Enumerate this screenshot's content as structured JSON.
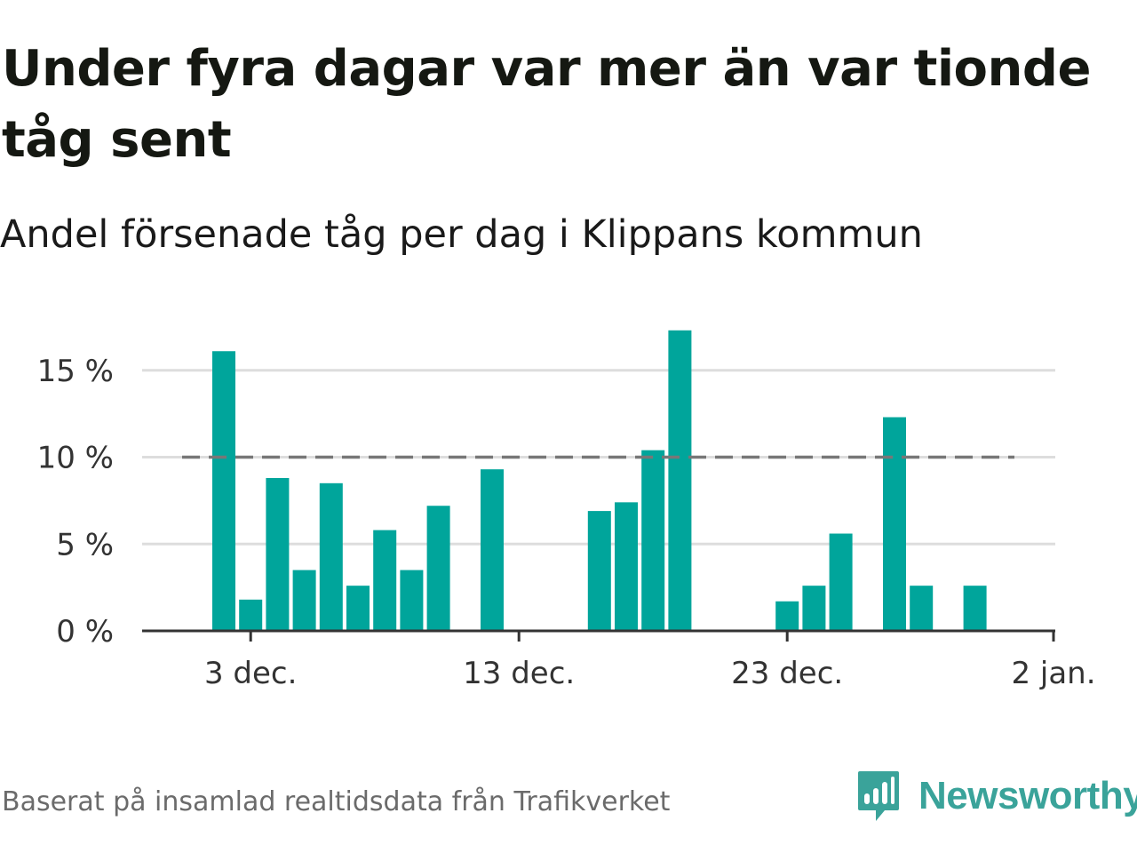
{
  "title": "Under fyra dagar var mer än var tionde tåg sent",
  "subtitle": "Andel försenade tåg per dag i Klippans kommun",
  "source": "Baserat på insamlad realtidsdata från Trafikverket",
  "brand": {
    "name": "Newsworthy",
    "icon": "newsworthy-logo-icon"
  },
  "colors": {
    "bar": "#00a59b",
    "reference_line": "#777777",
    "grid": "#dddddd",
    "axis": "#333333",
    "brand": "#3aa39a"
  },
  "chart_data": {
    "type": "bar",
    "x": [
      "2 dec.",
      "3 dec.",
      "4 dec.",
      "5 dec.",
      "6 dec.",
      "7 dec.",
      "8 dec.",
      "9 dec.",
      "10 dec.",
      "11 dec.",
      "12 dec.",
      "13 dec.",
      "14 dec.",
      "15 dec.",
      "16 dec.",
      "17 dec.",
      "18 dec.",
      "19 dec.",
      "20 dec.",
      "21 dec.",
      "22 dec.",
      "23 dec.",
      "24 dec.",
      "25 dec.",
      "26 dec.",
      "27 dec.",
      "28 dec.",
      "29 dec.",
      "30 dec.",
      "31 dec.",
      "1 jan."
    ],
    "values": [
      16.1,
      1.8,
      8.8,
      3.5,
      8.5,
      2.6,
      5.8,
      3.5,
      7.2,
      null,
      9.3,
      null,
      null,
      null,
      6.9,
      7.4,
      10.4,
      17.3,
      null,
      null,
      null,
      1.7,
      2.6,
      5.6,
      null,
      12.3,
      2.6,
      null,
      2.6,
      null,
      null
    ],
    "reference_line": 10,
    "x_ticks": [
      "3 dec.",
      "13 dec.",
      "23 dec.",
      "2 jan."
    ],
    "y_ticks": [
      "0 %",
      "5 %",
      "10 %",
      "15 %"
    ],
    "y_tick_values": [
      0,
      5,
      10,
      15
    ],
    "ylim": [
      0,
      17.3
    ],
    "grid": true,
    "legend": "none",
    "xlabel": "",
    "ylabel": ""
  }
}
